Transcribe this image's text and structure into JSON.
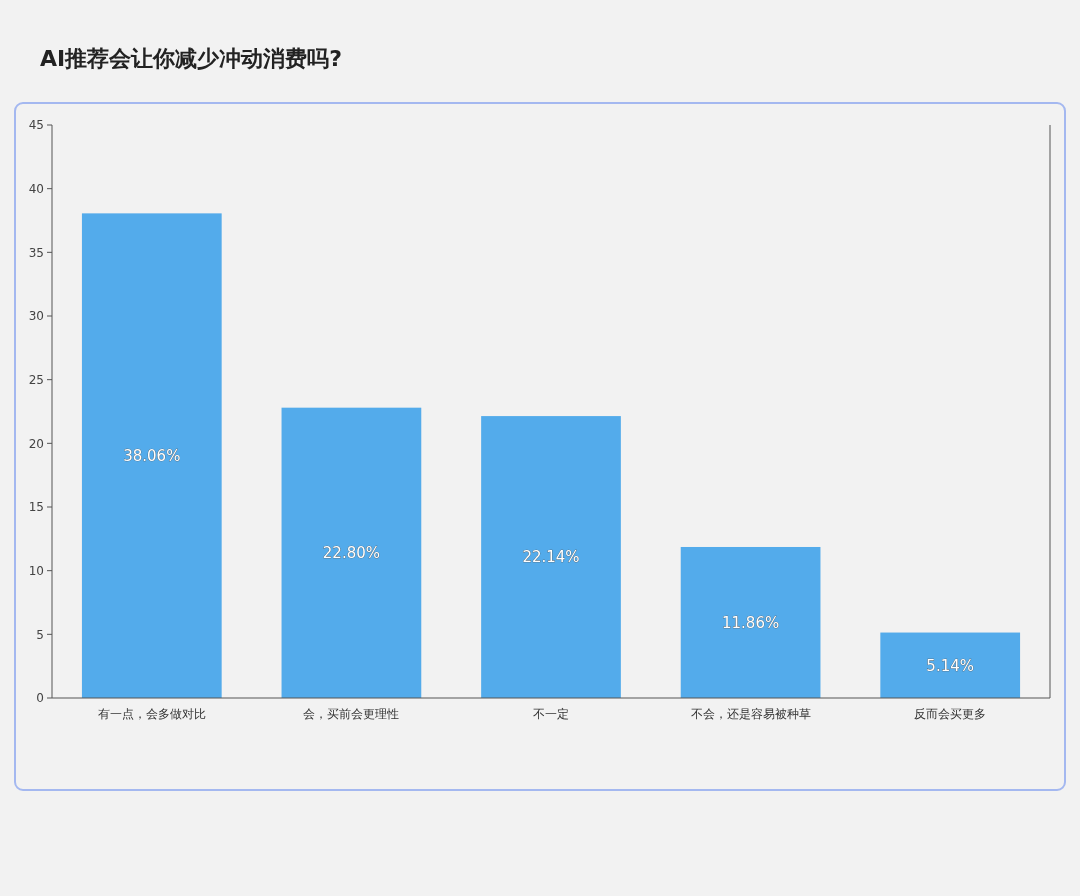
{
  "chart_data": {
    "type": "bar",
    "title": "AI推荐会让你减少冲动消费吗?",
    "categories": [
      "有一点，会多做对比",
      "会，买前会更理性",
      "不一定",
      "不会，还是容易被种草",
      "反而会买更多"
    ],
    "values": [
      38.06,
      22.8,
      22.14,
      11.86,
      5.14
    ],
    "value_labels": [
      "38.06%",
      "22.80%",
      "22.14%",
      "11.86%",
      "5.14%"
    ],
    "color": "#4aa6ea",
    "ylim": [
      0,
      45
    ],
    "yticks": [
      0,
      5,
      10,
      15,
      20,
      25,
      30,
      35,
      40,
      45
    ],
    "grid": false
  }
}
